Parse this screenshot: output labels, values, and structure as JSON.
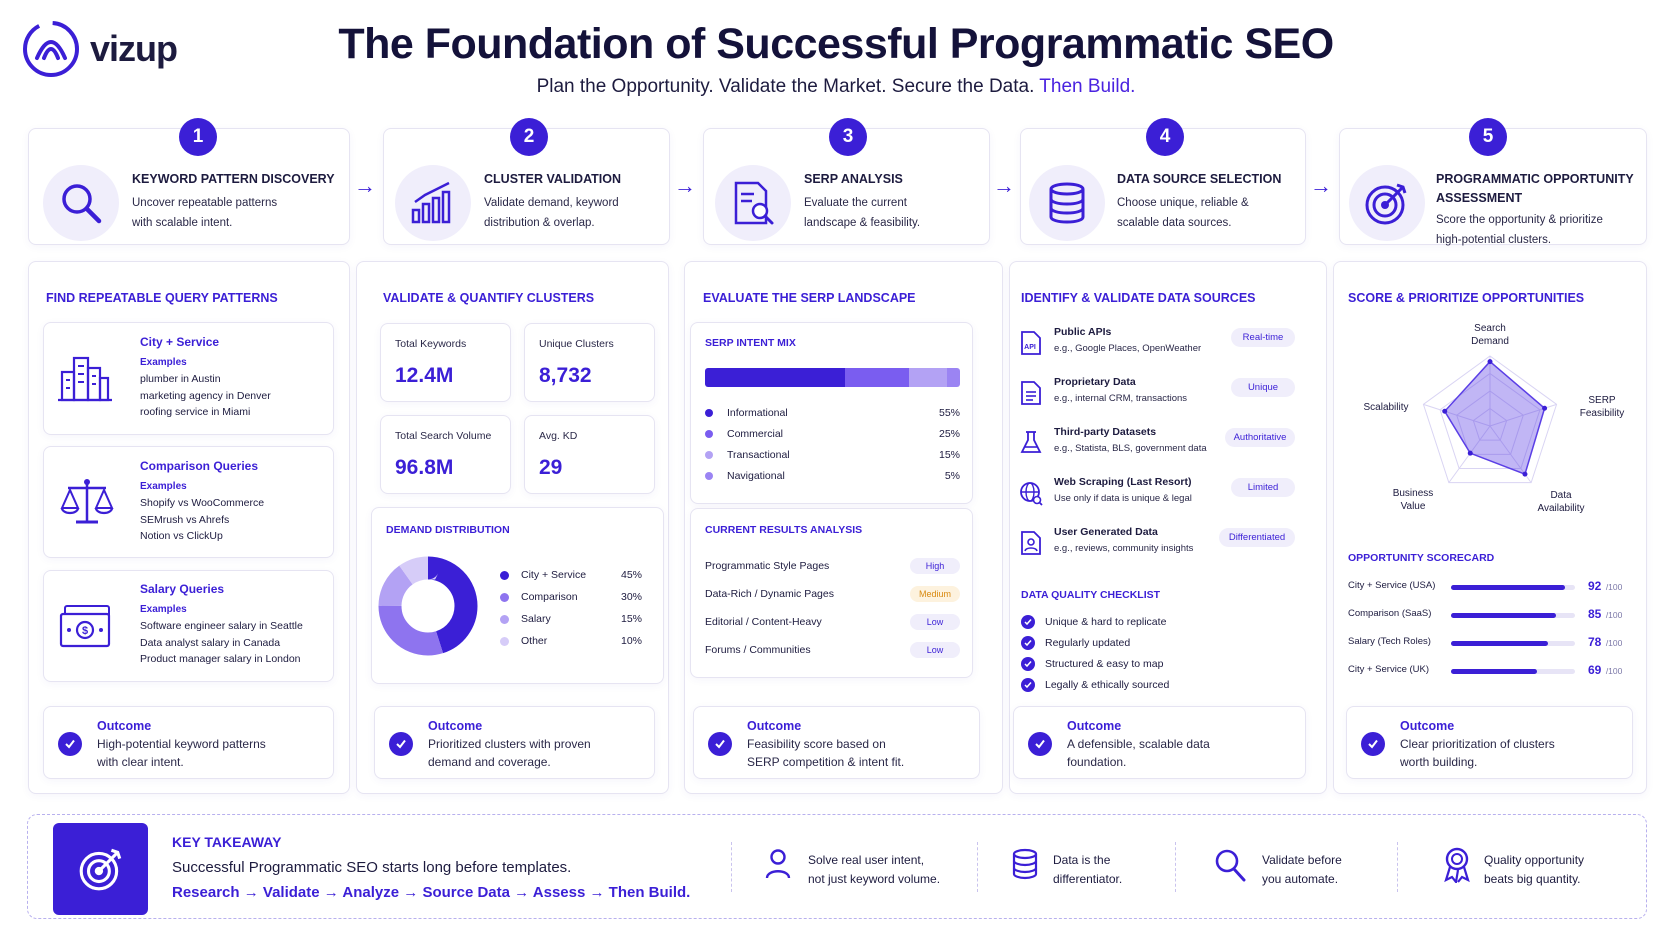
{
  "brand": {
    "name": "vizup"
  },
  "header": {
    "title": "The Foundation of Successful Programmatic SEO",
    "subtitle_plain": "Plan the Opportunity. Validate the Market. Secure the Data.",
    "subtitle_highlight": "Then Build."
  },
  "steps": [
    {
      "number": "1",
      "title": "KEYWORD PATTERN DISCOVERY",
      "desc1": "Uncover repeatable patterns",
      "desc2": "with scalable intent.",
      "icon": "search-icon"
    },
    {
      "number": "2",
      "title": "CLUSTER VALIDATION",
      "desc1": "Validate demand, keyword",
      "desc2": "distribution & overlap.",
      "icon": "bar-chart-icon"
    },
    {
      "number": "3",
      "title": "SERP ANALYSIS",
      "desc1": "Evaluate the current",
      "desc2": "landscape & feasibility.",
      "icon": "document-search-icon"
    },
    {
      "number": "4",
      "title": "DATA SOURCE SELECTION",
      "desc1": "Choose unique, reliable &",
      "desc2": "scalable data sources.",
      "icon": "database-icon"
    },
    {
      "number": "5",
      "title1": "PROGRAMMATIC OPPORTUNITY",
      "title2": "ASSESSMENT",
      "desc1": "Score the opportunity & prioritize",
      "desc2": "high-potential clusters.",
      "icon": "target-icon"
    }
  ],
  "col1": {
    "heading": "FIND REPEATABLE QUERY PATTERNS",
    "patterns": [
      {
        "title": "City + Service",
        "examples_label": "Examples",
        "lines": [
          "plumber in Austin",
          "marketing agency in Denver",
          "roofing service in Miami"
        ],
        "icon": "buildings-icon"
      },
      {
        "title": "Comparison Queries",
        "examples_label": "Examples",
        "lines": [
          "Shopify vs WooCommerce",
          "SEMrush vs Ahrefs",
          "Notion vs ClickUp"
        ],
        "icon": "scales-icon"
      },
      {
        "title": "Salary Queries",
        "examples_label": "Examples",
        "lines": [
          "Software engineer salary in Seattle",
          "Data analyst salary in Canada",
          "Product manager salary in London"
        ],
        "icon": "money-icon"
      }
    ],
    "outcome": {
      "title": "Outcome",
      "line1": "High-potential keyword patterns",
      "line2": "with clear intent."
    }
  },
  "col2": {
    "heading": "VALIDATE & QUANTIFY CLUSTERS",
    "stats": [
      {
        "label": "Total Keywords",
        "value": "12.4M"
      },
      {
        "label": "Unique Clusters",
        "value": "8,732"
      },
      {
        "label": "Total Search Volume",
        "value": "96.8M"
      },
      {
        "label": "Avg. KD",
        "value": "29"
      }
    ],
    "demand_heading": "DEMAND DISTRIBUTION",
    "outcome": {
      "title": "Outcome",
      "line1": "Prioritized clusters with proven",
      "line2": "demand and coverage."
    }
  },
  "col3": {
    "heading": "EVALUATE THE SERP LANDSCAPE",
    "intent_heading": "SERP INTENT MIX",
    "results_heading": "CURRENT RESULTS ANALYSIS",
    "results": [
      {
        "label": "Programmatic Style Pages",
        "level": "High",
        "color": "#f0eefb",
        "text_color": "#3b1fd6"
      },
      {
        "label": "Data-Rich / Dynamic Pages",
        "level": "Medium",
        "color": "#fdf2de",
        "text_color": "#d98a10"
      },
      {
        "label": "Editorial / Content-Heavy",
        "level": "Low",
        "color": "#f0eefb",
        "text_color": "#3b1fd6"
      },
      {
        "label": "Forums / Communities",
        "level": "Low",
        "color": "#f0eefb",
        "text_color": "#3b1fd6"
      }
    ],
    "outcome": {
      "title": "Outcome",
      "line1": "Feasibility score based on",
      "line2": "SERP competition & intent fit."
    }
  },
  "col4": {
    "heading": "IDENTIFY & VALIDATE DATA SOURCES",
    "sources": [
      {
        "title": "Public APIs",
        "sub": "e.g., Google Places, OpenWeather",
        "badge": "Real-time",
        "icon": "api-doc-icon"
      },
      {
        "title": "Proprietary Data",
        "sub": "e.g., internal CRM, transactions",
        "badge": "Unique",
        "icon": "file-icon"
      },
      {
        "title": "Third-party Datasets",
        "sub": "e.g., Statista, BLS, government data",
        "badge": "Authoritative",
        "icon": "flask-icon"
      },
      {
        "title": "Web Scraping (Last Resort)",
        "sub": "Use only if data is unique & legal",
        "badge": "Limited",
        "icon": "globe-icon"
      },
      {
        "title": "User Generated Data",
        "sub": "e.g., reviews, community insights",
        "badge": "Differentiated",
        "icon": "user-doc-icon"
      }
    ],
    "checklist_heading": "DATA QUALITY CHECKLIST",
    "checklist": [
      "Unique & hard to replicate",
      "Regularly updated",
      "Structured & easy to map",
      "Legally & ethically sourced"
    ],
    "outcome": {
      "title": "Outcome",
      "line1": "A defensible, scalable data",
      "line2": "foundation."
    }
  },
  "col5": {
    "heading": "SCORE & PRIORITIZE OPPORTUNITIES",
    "radar_labels": {
      "top1": "Search",
      "top2": "Demand",
      "right1": "SERP",
      "right2": "Feasibility",
      "bottom_right1": "Data",
      "bottom_right2": "Availability",
      "bottom_left1": "Business",
      "bottom_left2": "Value",
      "left": "Scalability"
    },
    "scorecard_heading": "OPPORTUNITY SCORECARD",
    "scores": [
      {
        "label": "City + Service (USA)",
        "value": "92",
        "max": "/100"
      },
      {
        "label": "Comparison (SaaS)",
        "value": "85",
        "max": "/100"
      },
      {
        "label": "Salary (Tech Roles)",
        "value": "78",
        "max": "/100"
      },
      {
        "label": "City + Service (UK)",
        "value": "69",
        "max": "/100"
      }
    ],
    "outcome": {
      "title": "Outcome",
      "line1": "Clear prioritization of clusters",
      "line2": "worth building."
    }
  },
  "takeaway": {
    "title": "KEY TAKEAWAY",
    "text": "Successful Programmatic SEO starts long before templates.",
    "flow": [
      "Research",
      "Validate",
      "Analyze",
      "Source Data",
      "Assess",
      "Then Build."
    ],
    "arrow": "→",
    "items": [
      {
        "line1": "Solve real user intent,",
        "line2": "not just keyword volume.",
        "icon": "user-icon"
      },
      {
        "line1": "Data is the",
        "line2": "differentiator.",
        "icon": "database-icon"
      },
      {
        "line1": "Validate before",
        "line2": "you automate.",
        "icon": "search-icon"
      },
      {
        "line1": "Quality opportunity",
        "line2": "beats big quantity.",
        "icon": "award-icon"
      }
    ]
  },
  "chart_data": [
    {
      "type": "pie",
      "title": "DEMAND DISTRIBUTION",
      "categories": [
        "City + Service",
        "Comparison",
        "Salary",
        "Other"
      ],
      "values": [
        45,
        30,
        15,
        10
      ],
      "value_labels": [
        "45%",
        "30%",
        "15%",
        "10%"
      ],
      "colors": [
        "#3b1fd6",
        "#8e74ef",
        "#b3a2f4",
        "#d6ccf8"
      ]
    },
    {
      "type": "bar",
      "title": "SERP INTENT MIX",
      "categories": [
        "Informational",
        "Commercial",
        "Transactional",
        "Navigational"
      ],
      "values": [
        55,
        25,
        15,
        5
      ],
      "value_labels": [
        "55%",
        "25%",
        "15%",
        "5%"
      ],
      "colors": [
        "#3b1fd6",
        "#7a5df0",
        "#b3a2f4",
        "#9b84f3"
      ]
    },
    {
      "type": "radar",
      "categories": [
        "Search Demand",
        "SERP Feasibility",
        "Data Availability",
        "Business Value",
        "Scalability"
      ],
      "values": [
        0.92,
        0.82,
        0.85,
        0.48,
        0.68
      ]
    },
    {
      "type": "bar",
      "title": "OPPORTUNITY SCORECARD",
      "categories": [
        "City + Service (USA)",
        "Comparison (SaaS)",
        "Salary (Tech Roles)",
        "City + Service (UK)"
      ],
      "values": [
        92,
        85,
        78,
        69
      ],
      "xlim": [
        0,
        100
      ]
    }
  ]
}
